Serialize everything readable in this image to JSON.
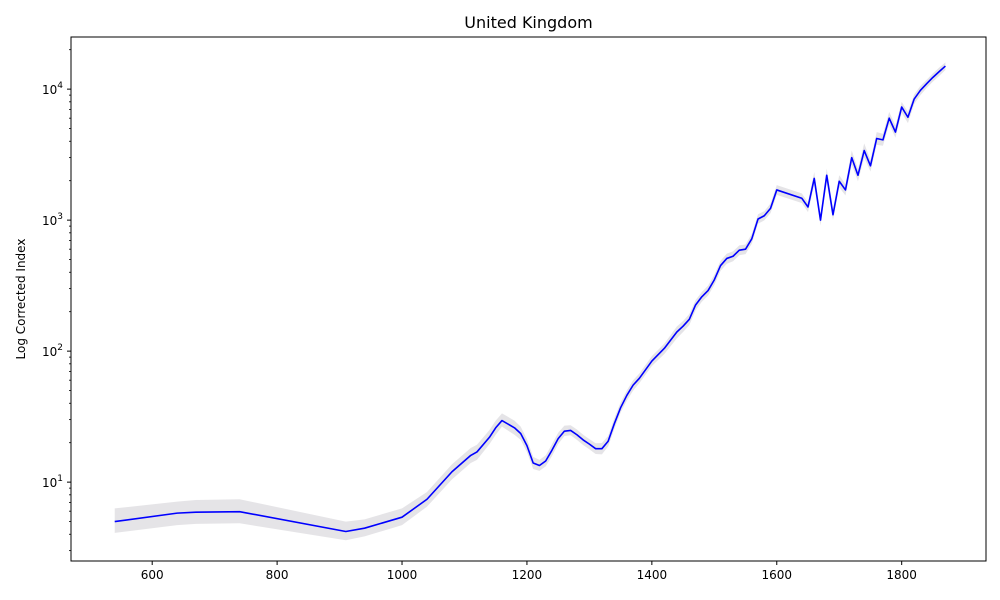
{
  "chart_data": {
    "type": "line",
    "title": "United Kingdom",
    "xlabel": "",
    "ylabel": "Log Corrected Index",
    "yscale": "log",
    "xlim": [
      470,
      1935
    ],
    "ylim": [
      2.5,
      25000
    ],
    "xticks": [
      600,
      800,
      1000,
      1200,
      1400,
      1600,
      1800
    ],
    "xtick_labels": [
      "600",
      "800",
      "1000",
      "1200",
      "1400",
      "1600",
      "1800"
    ],
    "yticks": [
      10,
      100,
      1000,
      10000
    ],
    "ytick_labels": [
      "10^1",
      "10^2",
      "10^3",
      "10^4"
    ],
    "grid": false,
    "colors": {
      "line": "#0000ff",
      "band": "#e0dfe3",
      "axis": "#000000"
    },
    "series": [
      {
        "x": [
          540,
          640,
          670,
          740,
          910,
          940,
          1000,
          1040,
          1080,
          1110,
          1120,
          1140,
          1150,
          1160,
          1180,
          1190,
          1200,
          1210,
          1220,
          1230,
          1240,
          1250,
          1260,
          1270,
          1280,
          1290,
          1300,
          1310,
          1320,
          1330,
          1340,
          1350,
          1360,
          1370,
          1380,
          1400,
          1420,
          1440,
          1450,
          1460,
          1470,
          1480,
          1490,
          1500,
          1510,
          1520,
          1530,
          1540,
          1550,
          1560,
          1570,
          1580,
          1590,
          1600,
          1640,
          1650,
          1660,
          1670,
          1680,
          1690,
          1700,
          1710,
          1720,
          1730,
          1740,
          1750,
          1760,
          1770,
          1780,
          1790,
          1800,
          1810,
          1820,
          1830,
          1840,
          1850,
          1860,
          1870
        ],
        "values": [
          5.0,
          5.8,
          5.9,
          5.95,
          4.2,
          4.45,
          5.4,
          7.4,
          12.0,
          16.0,
          17.0,
          22.0,
          26.0,
          29.5,
          26.0,
          23.5,
          19.0,
          14.0,
          13.4,
          14.5,
          17.5,
          21.5,
          24.5,
          24.8,
          23.0,
          21.0,
          19.5,
          18.0,
          18.0,
          20.5,
          28.0,
          37.0,
          46.0,
          55.0,
          62.0,
          84.0,
          105.0,
          140.0,
          155.0,
          175.0,
          225.0,
          260.0,
          290.0,
          350.0,
          450.0,
          510.0,
          530.0,
          590.0,
          600.0,
          720.0,
          1020.0,
          1080.0,
          1230.0,
          1700.0,
          1470.0,
          1260.0,
          2080.0,
          1000.0,
          2200.0,
          1100.0,
          1980.0,
          1700.0,
          3000.0,
          2200.0,
          3400.0,
          2600.0,
          4200.0,
          4100.0,
          6000.0,
          4700.0,
          7300.0,
          6100.0,
          8400.0,
          9800.0,
          11000.0,
          12300.0,
          13600.0,
          15000.0
        ],
        "band_lower": [
          4.1,
          4.7,
          4.8,
          4.85,
          3.6,
          3.85,
          4.7,
          6.5,
          10.5,
          14.0,
          14.8,
          19.5,
          23.0,
          26.5,
          23.0,
          21.0,
          17.0,
          12.6,
          12.2,
          13.2,
          15.8,
          19.5,
          22.5,
          22.8,
          21.0,
          19.2,
          17.8,
          16.4,
          16.3,
          18.7,
          25.5,
          34.0,
          42.0,
          50.0,
          57.0,
          77.0,
          95.0,
          125.0,
          140.0,
          158.0,
          205.0,
          238.0,
          265.0,
          320.0,
          410.0,
          465.0,
          485.0,
          540.0,
          550.0,
          660.0,
          940.0,
          995.0,
          1130.0,
          1560.0,
          1350.0,
          1150.0,
          1850.0,
          910.0,
          1950.0,
          1000.0,
          1780.0,
          1540.0,
          2650.0,
          1980.0,
          3000.0,
          2350.0,
          3750.0,
          3700.0,
          5400.0,
          4250.0,
          6600.0,
          5500.0,
          7700.0,
          9000.0,
          10200.0,
          11400.0,
          12600.0,
          14000.0
        ],
        "band_upper": [
          6.3,
          7.1,
          7.3,
          7.4,
          5.0,
          5.2,
          6.3,
          8.4,
          13.7,
          18.2,
          19.3,
          25.0,
          29.5,
          33.5,
          29.5,
          26.5,
          21.3,
          15.6,
          14.8,
          16.0,
          19.4,
          23.8,
          27.0,
          27.2,
          25.2,
          23.0,
          21.3,
          19.8,
          19.9,
          22.5,
          30.8,
          40.5,
          50.2,
          60.0,
          67.5,
          91.5,
          114.0,
          154.0,
          170.0,
          192.0,
          245.0,
          283.0,
          316.0,
          382.0,
          490.0,
          555.0,
          578.0,
          642.0,
          652.0,
          785.0,
          1110.0,
          1170.0,
          1340.0,
          1850.0,
          1600.0,
          1370.0,
          2330.0,
          1100.0,
          2480.0,
          1210.0,
          2200.0,
          1880.0,
          3400.0,
          2450.0,
          3850.0,
          2880.0,
          4700.0,
          4560.0,
          6700.0,
          5250.0,
          8000.0,
          6700.0,
          9100.0,
          10600.0,
          11800.0,
          13200.0,
          14600.0,
          16000.0
        ]
      }
    ]
  }
}
